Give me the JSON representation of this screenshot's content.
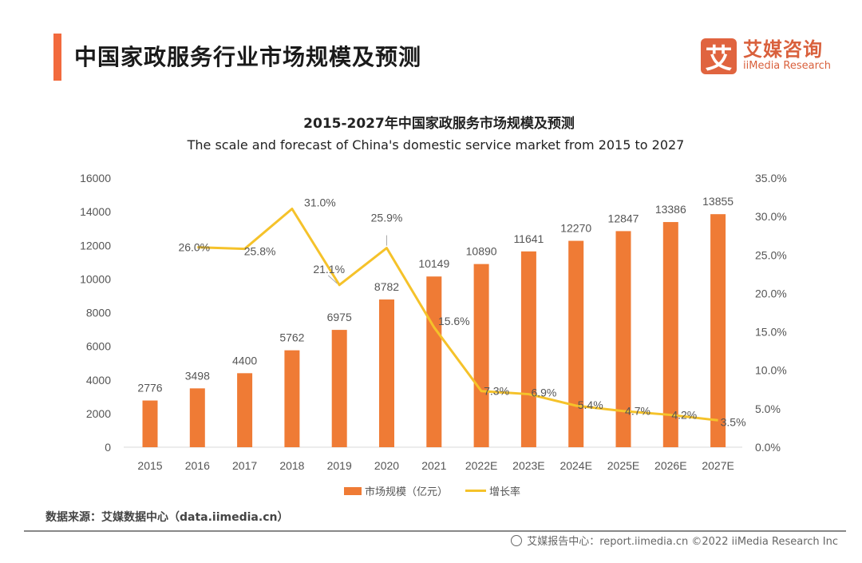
{
  "header": {
    "title": "中国家政服务行业市场规模及预测",
    "logo": {
      "mark": "艾",
      "name_cn": "艾媒咨询",
      "name_en": "iiMedia Research",
      "brand_color": "#e0643f"
    }
  },
  "chart_data": {
    "type": "bar",
    "title": "2015-2027年中国家政服务市场规模及预测",
    "subtitle": "The scale and forecast of China's domestic service market from 2015 to 2027",
    "categories": [
      "2015",
      "2016",
      "2017",
      "2018",
      "2019",
      "2020",
      "2021",
      "2022E",
      "2023E",
      "2024E",
      "2025E",
      "2026E",
      "2027E"
    ],
    "series": [
      {
        "name": "市场规模（亿元）",
        "type": "bar",
        "axis": "left",
        "color": "#ef7b35",
        "values": [
          2776,
          3498,
          4400,
          5762,
          6975,
          8782,
          10149,
          10890,
          11641,
          12270,
          12847,
          13386,
          13855
        ],
        "labels": [
          "2776",
          "3498",
          "4400",
          "5762",
          "6975",
          "8782",
          "10149",
          "10890",
          "11641",
          "12270",
          "12847",
          "13386",
          "13855"
        ]
      },
      {
        "name": "增长率",
        "type": "line",
        "axis": "right",
        "color": "#f5c22a",
        "values": [
          null,
          26.0,
          25.8,
          31.0,
          21.1,
          25.9,
          15.6,
          7.3,
          6.9,
          5.4,
          4.7,
          4.2,
          3.5
        ],
        "labels": [
          "",
          "26.0%",
          "25.8%",
          "31.0%",
          "21.1%",
          "25.9%",
          "15.6%",
          "7.3%",
          "6.9%",
          "5.4%",
          "4.7%",
          "4.2%",
          "3.5%"
        ]
      }
    ],
    "y_left": {
      "range": [
        0,
        16000
      ],
      "ticks": [
        "0",
        "2000",
        "4000",
        "6000",
        "8000",
        "10000",
        "12000",
        "14000",
        "16000"
      ]
    },
    "y_right": {
      "range": [
        0,
        35
      ],
      "ticks": [
        "0.0%",
        "5.0%",
        "10.0%",
        "15.0%",
        "20.0%",
        "25.0%",
        "30.0%",
        "35.0%"
      ]
    },
    "grid": false,
    "legend": {
      "position": "bottom-center",
      "items": [
        "市场规模（亿元）",
        "增长率"
      ]
    }
  },
  "footer": {
    "source": "数据来源：艾媒数据中心（data.iimedia.cn）",
    "report": "艾媒报告中心：report.iimedia.cn   ©2022  iiMedia Research  Inc"
  }
}
